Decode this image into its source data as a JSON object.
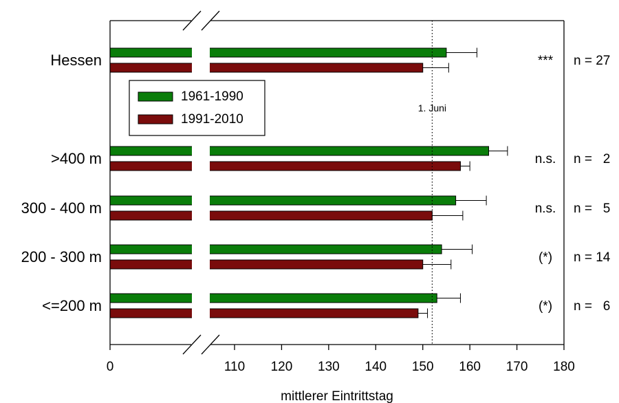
{
  "chart_data": {
    "type": "bar",
    "orientation": "horizontal",
    "xlabel": "mittlerer Eintrittstag",
    "x_ticks": [
      0,
      110,
      120,
      130,
      140,
      150,
      160,
      170,
      180
    ],
    "x_axis_break": [
      0,
      105
    ],
    "xlim": [
      105,
      180
    ],
    "categories": [
      "Hessen",
      ">400 m",
      "300 - 400 m",
      "200 - 300 m",
      "<=200 m"
    ],
    "series": [
      {
        "name": "1961-1990",
        "color": "#0a7d0a",
        "values": [
          155,
          164,
          157,
          154,
          153
        ],
        "error": [
          6.5,
          4,
          6.5,
          6.5,
          5
        ]
      },
      {
        "name": "1991-2010",
        "color": "#7a0c0c",
        "values": [
          150,
          158,
          152,
          150,
          149
        ],
        "error": [
          5.5,
          2,
          6.5,
          6,
          2
        ]
      }
    ],
    "significance": [
      "***",
      "n.s.",
      "n.s.",
      "(*)",
      "(*)"
    ],
    "sample_sizes": [
      "n = 27",
      "n =   2",
      "n =   5",
      "n = 14",
      "n =   6"
    ],
    "reference_line": {
      "value": 152,
      "label": "1. Juni"
    },
    "legend_position": "top-left"
  }
}
